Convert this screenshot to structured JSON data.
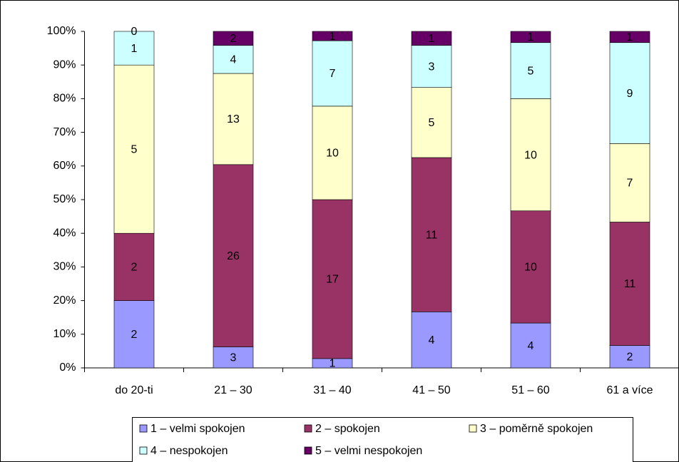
{
  "chart_data": {
    "type": "bar",
    "stacking": "percent",
    "categories": [
      "do 20-ti",
      "21 – 30",
      "31 – 40",
      "41 – 50",
      "51 – 60",
      "61 a více"
    ],
    "series": [
      {
        "name": "1 – velmi spokojen",
        "color": "#9999ff",
        "values": [
          2,
          3,
          1,
          4,
          4,
          2
        ]
      },
      {
        "name": "2 – spokojen",
        "color": "#993366",
        "values": [
          2,
          26,
          17,
          11,
          10,
          11
        ]
      },
      {
        "name": "3 – poměrně spokojen",
        "color": "#ffffcc",
        "values": [
          5,
          13,
          10,
          5,
          10,
          7
        ]
      },
      {
        "name": "4 – nespokojen",
        "color": "#ccffff",
        "values": [
          1,
          4,
          7,
          3,
          5,
          9
        ]
      },
      {
        "name": "5 – velmi nespokojen",
        "color": "#660066",
        "values": [
          0,
          2,
          1,
          1,
          1,
          1
        ]
      }
    ],
    "ylim": [
      0,
      100
    ],
    "yticks": [
      {
        "value": 0,
        "label": "0%"
      },
      {
        "value": 10,
        "label": "10%"
      },
      {
        "value": 20,
        "label": "20%"
      },
      {
        "value": 30,
        "label": "30%"
      },
      {
        "value": 40,
        "label": "40%"
      },
      {
        "value": 50,
        "label": "50%"
      },
      {
        "value": 60,
        "label": "60%"
      },
      {
        "value": 70,
        "label": "70%"
      },
      {
        "value": 80,
        "label": "80%"
      },
      {
        "value": 90,
        "label": "90%"
      },
      {
        "value": 100,
        "label": "100%"
      }
    ],
    "legend": "bottom"
  }
}
